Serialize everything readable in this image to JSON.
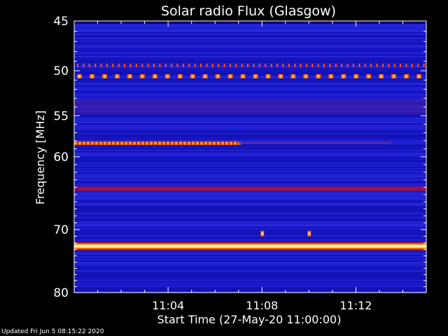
{
  "chart_data": {
    "type": "heatmap",
    "title": "Solar radio Flux (Glasgow)",
    "xlabel": "Start Time (27-May-20 11:00:00)",
    "ylabel": "Frequency [MHz]",
    "x_unit": "minutes after 11:00:00",
    "xlim": [
      0,
      15
    ],
    "ylim": [
      45,
      80
    ],
    "y_scale": "log",
    "x_ticks": [
      {
        "value": 4,
        "label": "11:04"
      },
      {
        "value": 8,
        "label": "11:08"
      },
      {
        "value": 12,
        "label": "11:12"
      }
    ],
    "y_ticks": [
      {
        "value": 45,
        "label": "45"
      },
      {
        "value": 50,
        "label": "50"
      },
      {
        "value": 55,
        "label": "55"
      },
      {
        "value": 60,
        "label": "60"
      },
      {
        "value": 70,
        "label": "70"
      },
      {
        "value": 80,
        "label": "80"
      }
    ],
    "colormap": [
      "#000000",
      "#0000c8",
      "#5a1a9a",
      "#c0102a",
      "#ff3000",
      "#ffd000",
      "#ffffff"
    ],
    "background_color": "#1a1acc",
    "features": [
      {
        "name": "continuous-band",
        "freq": 72.5,
        "x_range": [
          0,
          15
        ],
        "intensity": "very high"
      },
      {
        "name": "continuous-band",
        "freq": 64.2,
        "x_range": [
          0,
          15
        ],
        "intensity": "medium"
      },
      {
        "name": "intermittent-band",
        "freq": 58.3,
        "x_range": [
          0,
          7
        ],
        "intensity": "high"
      },
      {
        "name": "pulsed-band",
        "freq": 50.6,
        "x_range": [
          0,
          15
        ],
        "intensity": "high"
      },
      {
        "name": "pulsed-band",
        "freq": 49.4,
        "x_range": [
          0,
          15
        ],
        "intensity": "medium"
      },
      {
        "name": "spot",
        "freq": 70.6,
        "x": 8.0,
        "intensity": "high"
      },
      {
        "name": "spot",
        "freq": 70.6,
        "x": 10.0,
        "intensity": "high"
      }
    ]
  },
  "footer": "Updated Fri Jun  5 08:15:22 2020"
}
